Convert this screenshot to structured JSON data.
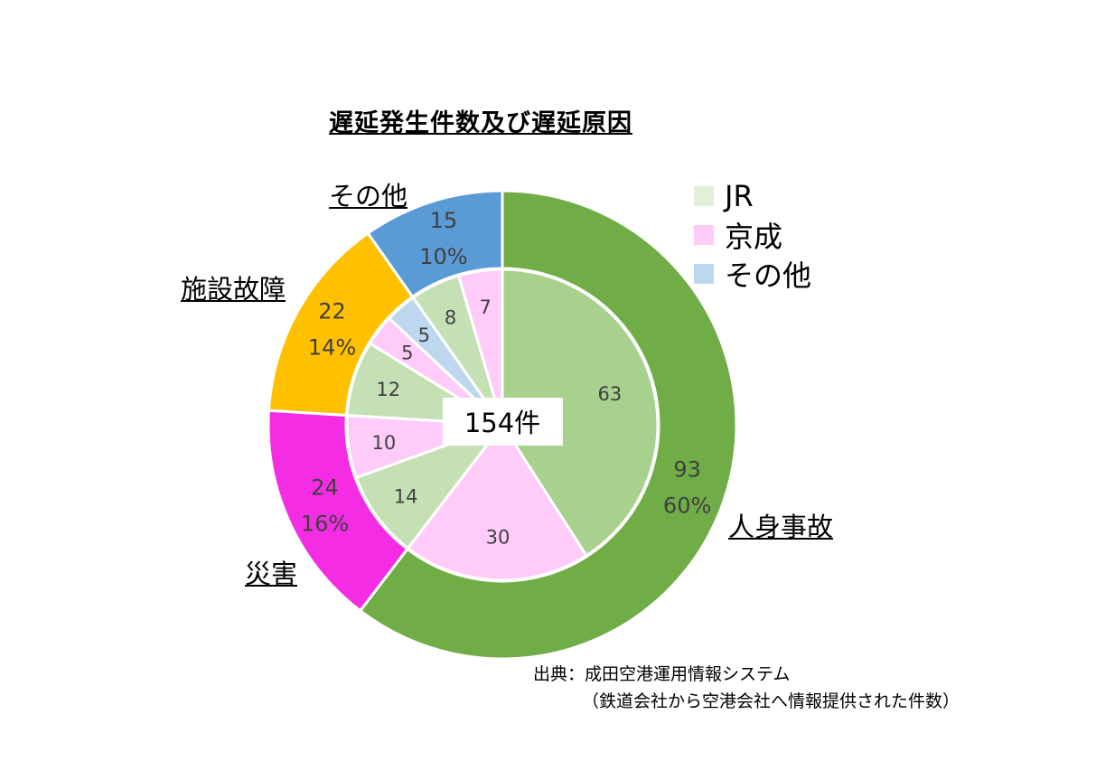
{
  "chart_data": {
    "type": "donut",
    "title": "遅延発生件数及び遅延原因",
    "total_label": "154件",
    "outer": [
      {
        "name": "人身事故",
        "value": 93,
        "percent": "60%",
        "color": "#70AD47"
      },
      {
        "name": "災害",
        "value": 24,
        "percent": "16%",
        "color": "#F42CE4"
      },
      {
        "name": "施設故障",
        "value": 22,
        "percent": "14%",
        "color": "#FFC000"
      },
      {
        "name": "その他",
        "value": 15,
        "percent": "10%",
        "color": "#5B9BD5"
      }
    ],
    "inner": [
      {
        "parent": "人身事故",
        "company": "JR",
        "value": 63,
        "color": "#A9D18E"
      },
      {
        "parent": "人身事故",
        "company": "京成",
        "value": 30,
        "color": "#FFCCFA"
      },
      {
        "parent": "災害",
        "company": "JR",
        "value": 14,
        "color": "#C5E0B4"
      },
      {
        "parent": "災害",
        "company": "京成",
        "value": 10,
        "color": "#FFCCFA"
      },
      {
        "parent": "施設故障",
        "company": "JR",
        "value": 12,
        "color": "#C5E0B4"
      },
      {
        "parent": "施設故障",
        "company": "京成",
        "value": 5,
        "color": "#FFCCFA"
      },
      {
        "parent": "施設故障",
        "company": "その他",
        "value": 5,
        "color": "#BDD7EE"
      },
      {
        "parent": "その他",
        "company": "JR",
        "value": 8,
        "color": "#C5E0B4"
      },
      {
        "parent": "その他",
        "company": "京成",
        "value": 7,
        "color": "#FFCCFA"
      }
    ],
    "legend": [
      {
        "label": "JR",
        "color": "#E2F0D9"
      },
      {
        "label": "京成",
        "color": "#FFCCFA"
      },
      {
        "label": "その他",
        "color": "#BDD7EE"
      }
    ],
    "legend_position": "top-right"
  },
  "source": {
    "line1": "出典：成田空港運用情報システム",
    "line2": "（鉄道会社から空港会社へ情報提供された件数）"
  }
}
